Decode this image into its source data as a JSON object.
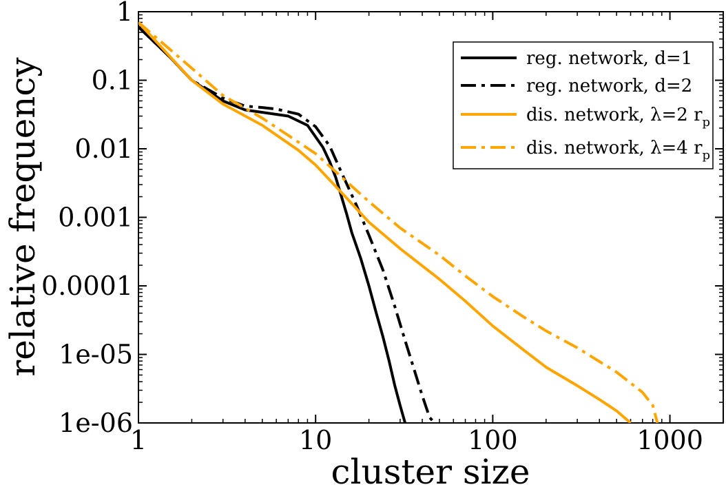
{
  "chart_data": {
    "type": "line",
    "title": "",
    "xlabel": "cluster size",
    "ylabel": "relative frequency",
    "xscale": "log",
    "yscale": "log",
    "xlim": [
      1,
      2000
    ],
    "ylim": [
      1e-06,
      1
    ],
    "x_ticks": [
      1,
      10,
      100,
      1000
    ],
    "x_tick_labels": [
      "1",
      "10",
      "100",
      "1000"
    ],
    "y_ticks": [
      1,
      0.1,
      0.01,
      0.001,
      0.0001,
      1e-05,
      1e-06
    ],
    "y_tick_labels": [
      "1",
      "0.1",
      "0.01",
      "0.001",
      "0.0001",
      "1e-05",
      "1e-06"
    ],
    "legend_position": "top-right",
    "series": [
      {
        "name": "reg. network, d=1",
        "legend_main": "reg. network, d=1",
        "legend_sub": "",
        "color": "#000000",
        "style": "solid",
        "x": [
          1,
          1.5,
          2,
          3,
          4,
          5,
          7,
          9,
          11,
          12,
          13,
          14,
          15,
          16,
          18,
          20,
          22,
          24,
          26,
          28,
          30,
          32
        ],
        "y": [
          0.6,
          0.22,
          0.1,
          0.05,
          0.037,
          0.034,
          0.03,
          0.022,
          0.0105,
          0.0065,
          0.0038,
          0.002,
          0.0011,
          0.0006,
          0.00025,
          0.0001,
          4e-05,
          1.8e-05,
          8e-06,
          3.5e-06,
          1.8e-06,
          1e-06
        ]
      },
      {
        "name": "reg. network, d=2",
        "legend_main": "reg. network, d=2",
        "legend_sub": "",
        "color": "#000000",
        "style": "dashdot",
        "x": [
          1,
          1.5,
          2,
          3,
          4,
          5,
          6,
          8,
          10,
          12,
          14,
          17,
          20,
          24,
          28,
          32,
          36,
          40,
          44,
          47
        ],
        "y": [
          0.6,
          0.22,
          0.1,
          0.055,
          0.042,
          0.04,
          0.038,
          0.032,
          0.021,
          0.011,
          0.0045,
          0.0015,
          0.00055,
          0.00017,
          5e-05,
          1.6e-05,
          6e-06,
          2.5e-06,
          1.2e-06,
          1e-06
        ]
      },
      {
        "name": "dis. network, λ=2 rp",
        "legend_main": "dis. network, λ=2 r",
        "legend_sub": "p",
        "color": "#FFA500",
        "style": "solid",
        "x": [
          1,
          2,
          3,
          5,
          8,
          10,
          15,
          20,
          30,
          50,
          70,
          100,
          150,
          200,
          300,
          400,
          500,
          600
        ],
        "y": [
          0.7,
          0.1,
          0.045,
          0.022,
          0.0095,
          0.0058,
          0.0019,
          0.00085,
          0.00035,
          0.000125,
          6e-05,
          2.6e-05,
          1.15e-05,
          6.5e-06,
          3.5e-06,
          2.2e-06,
          1.5e-06,
          1e-06
        ]
      },
      {
        "name": "dis. network, λ=4 rp",
        "legend_main": "dis. network, λ=4 r",
        "legend_sub": "p",
        "color": "#FFA500",
        "style": "dashdot",
        "x": [
          1,
          2,
          3,
          5,
          8,
          10,
          15,
          20,
          30,
          50,
          70,
          100,
          150,
          200,
          300,
          500,
          700,
          800,
          850
        ],
        "y": [
          0.7,
          0.15,
          0.06,
          0.028,
          0.0125,
          0.0085,
          0.0033,
          0.0017,
          0.0007,
          0.00028,
          0.00014,
          7e-05,
          3.5e-05,
          2.2e-05,
          1.25e-05,
          5.5e-06,
          2.8e-06,
          1.8e-06,
          1e-06
        ]
      }
    ]
  }
}
